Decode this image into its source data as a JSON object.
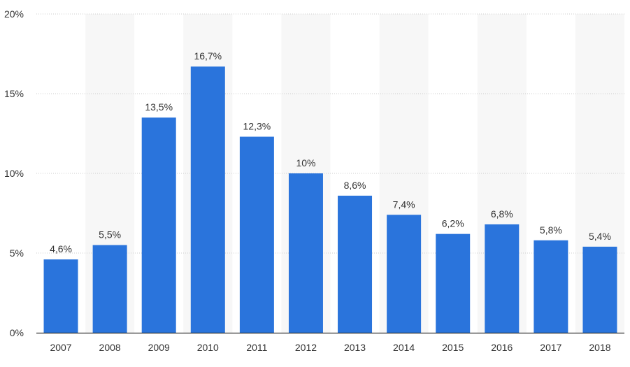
{
  "chart_data": {
    "type": "bar",
    "categories": [
      "2007",
      "2008",
      "2009",
      "2010",
      "2011",
      "2012",
      "2013",
      "2014",
      "2015",
      "2016",
      "2017",
      "2018"
    ],
    "values": [
      4.6,
      5.5,
      13.5,
      16.7,
      12.3,
      10,
      8.6,
      7.4,
      6.2,
      6.8,
      5.8,
      5.4
    ],
    "data_labels": [
      "4,6%",
      "5,5%",
      "13,5%",
      "16,7%",
      "12,3%",
      "10%",
      "8,6%",
      "7,4%",
      "6,2%",
      "6,8%",
      "5,8%",
      "5,4%"
    ],
    "y_ticks": [
      0,
      5,
      10,
      15,
      20
    ],
    "y_tick_labels": [
      "0%",
      "5%",
      "10%",
      "15%",
      "20%"
    ],
    "ylim": [
      0,
      20
    ],
    "title": "",
    "xlabel": "",
    "ylabel": "",
    "grid": true,
    "colors": {
      "bar": "#2a74dc",
      "band": "#f7f7f7",
      "grid": "#cccccc",
      "axis": "#333333"
    }
  }
}
